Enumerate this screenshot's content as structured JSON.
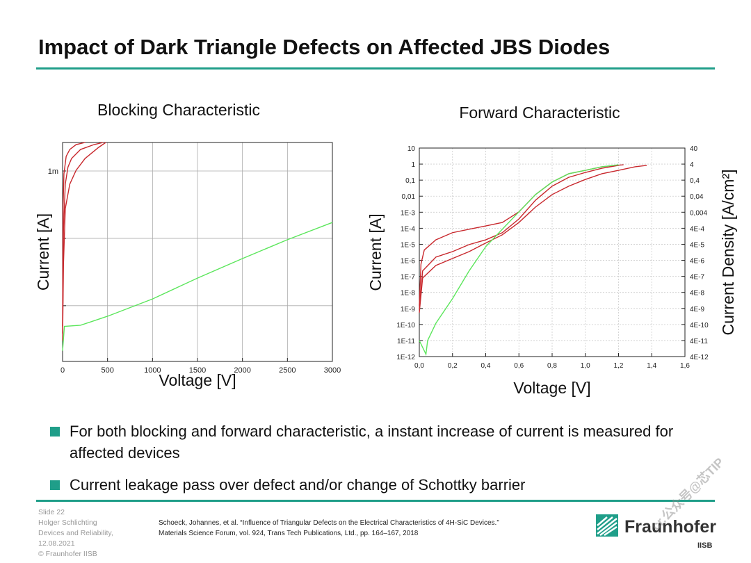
{
  "title": "Impact of Dark Triangle Defects on Affected JBS Diodes",
  "chart_data": [
    {
      "type": "line",
      "title": "Blocking Characteristic",
      "xlabel": "Voltage [V]",
      "ylabel": "Current [A]",
      "yscale": "log",
      "grid": true,
      "xlim": [
        0,
        3000
      ],
      "xticks": [
        0,
        500,
        1000,
        1500,
        2000,
        2500,
        3000
      ],
      "ylim": [
        3.3e-12,
        0.0186
      ],
      "yticks": [
        {
          "value": 0.001,
          "label": "1m"
        },
        {
          "value": 1e-06,
          "label": null
        },
        {
          "value": 1e-09,
          "label": null
        }
      ],
      "series": [
        {
          "color": "#c8282d",
          "x": [
            0,
            10,
            30,
            60,
            100,
            200,
            350,
            450
          ],
          "values": [
            5.8e-11,
            2.5e-06,
            0.00026,
            0.0015,
            0.0036,
            0.0091,
            0.015,
            0.0186
          ]
        },
        {
          "color": "#c8282d",
          "x": [
            0,
            5,
            15,
            40,
            80,
            150,
            250
          ],
          "values": [
            1.2e-10,
            2.1e-05,
            0.00075,
            0.0045,
            0.0091,
            0.015,
            0.0186
          ]
        },
        {
          "color": "#c8282d",
          "x": [
            0,
            10,
            30,
            80,
            150,
            250,
            400,
            480
          ],
          "values": [
            2.8e-11,
            7.2e-08,
            2.1e-05,
            0.00026,
            0.00107,
            0.0036,
            0.0112,
            0.0186
          ]
        },
        {
          "color": "#5ce65c",
          "x": [
            0,
            20,
            200,
            500,
            1000,
            1500,
            2000,
            2500,
            3000
          ],
          "values": [
            9.8e-12,
            1.2e-10,
            1.35e-10,
            3.4e-10,
            2e-09,
            1.7e-08,
            1.26e-07,
            8.7e-07,
            5.1e-06
          ]
        }
      ]
    },
    {
      "type": "line",
      "title": "Forward Characteristic",
      "xlabel": "Voltage [V]",
      "ylabel": "Current [A]",
      "y2label": "Current Density [A/cm²]",
      "yscale": "log",
      "grid": true,
      "xlim": [
        0,
        1.6
      ],
      "xticks": [
        {
          "value": 0,
          "label": "0,0"
        },
        {
          "value": 0.2,
          "label": "0,2"
        },
        {
          "value": 0.4,
          "label": "0,4"
        },
        {
          "value": 0.6,
          "label": "0,6"
        },
        {
          "value": 0.8,
          "label": "0,8"
        },
        {
          "value": 1.0,
          "label": "1,0"
        },
        {
          "value": 1.2,
          "label": "1,2"
        },
        {
          "value": 1.4,
          "label": "1,4"
        },
        {
          "value": 1.6,
          "label": "1,6"
        }
      ],
      "ylim": [
        1e-12,
        10
      ],
      "yticks": [
        10,
        1,
        {
          "value": 0.1,
          "label": "0,1"
        },
        {
          "value": 0.01,
          "label": "0,01"
        },
        {
          "value": 0.001,
          "label": "1E-3"
        },
        {
          "value": 0.0001,
          "label": "1E-4"
        },
        {
          "value": 1e-05,
          "label": "1E-5"
        },
        {
          "value": 1e-06,
          "label": "1E-6"
        },
        {
          "value": 1e-07,
          "label": "1E-7"
        },
        {
          "value": 1e-08,
          "label": "1E-8"
        },
        {
          "value": 1e-09,
          "label": "1E-9"
        },
        {
          "value": 1e-10,
          "label": "1E-10"
        },
        {
          "value": 1e-11,
          "label": "1E-11"
        },
        {
          "value": 1e-12,
          "label": "1E-12"
        }
      ],
      "y2lim": [
        4e-12,
        40
      ],
      "y2ticks": [
        40,
        4,
        {
          "value": 0.4,
          "label": "0,4"
        },
        {
          "value": 0.04,
          "label": "0,04"
        },
        {
          "value": 0.004,
          "label": "0,004"
        },
        {
          "value": 0.0004,
          "label": "4E-4"
        },
        {
          "value": 4e-05,
          "label": "4E-5"
        },
        {
          "value": 4e-06,
          "label": "4E-6"
        },
        {
          "value": 4e-07,
          "label": "4E-7"
        },
        {
          "value": 4e-08,
          "label": "4E-8"
        },
        {
          "value": 4e-09,
          "label": "4E-9"
        },
        {
          "value": 4e-10,
          "label": "4E-10"
        },
        {
          "value": 4e-11,
          "label": "4E-11"
        },
        {
          "value": 4e-12,
          "label": "4E-12"
        }
      ],
      "series": [
        {
          "color": "#c8282d",
          "x": [
            0,
            0.01,
            0.03,
            0.1,
            0.2,
            0.3,
            0.4,
            0.5,
            0.6,
            0.7,
            0.8,
            0.9,
            1.0,
            1.1,
            1.2,
            1.23
          ],
          "values": [
            1.5e-09,
            5.9e-07,
            4.4e-06,
            1.9e-05,
            5.3e-05,
            8.7e-05,
            0.00014,
            0.00023,
            0.00105,
            0.0126,
            0.076,
            0.25,
            0.41,
            0.68,
            0.85,
            0.91
          ]
        },
        {
          "color": "#c8282d",
          "x": [
            0,
            0.02,
            0.1,
            0.2,
            0.3,
            0.4,
            0.5,
            0.6,
            0.7,
            0.8,
            0.9,
            1.0,
            1.1,
            1.2
          ],
          "values": [
            9e-10,
            2.2e-07,
            1.6e-06,
            3.5e-06,
            9.6e-06,
            1.9e-05,
            5.3e-05,
            0.00038,
            0.0056,
            0.042,
            0.15,
            0.3,
            0.55,
            0.83
          ]
        },
        {
          "color": "#c8282d",
          "x": [
            0,
            0.02,
            0.1,
            0.2,
            0.3,
            0.4,
            0.5,
            0.6,
            0.7,
            0.8,
            0.9,
            1.0,
            1.1,
            1.2,
            1.3,
            1.37
          ],
          "values": [
            5.5e-10,
            7.9e-08,
            4.8e-07,
            1.3e-06,
            3.5e-06,
            1.2e-05,
            3.9e-05,
            0.00023,
            0.0021,
            0.0126,
            0.042,
            0.11,
            0.25,
            0.41,
            0.68,
            0.83
          ]
        },
        {
          "color": "#5ce65c",
          "x": [
            0,
            0.04,
            0.05,
            0.1,
            0.2,
            0.3,
            0.4,
            0.5,
            0.6,
            0.7,
            0.8,
            0.9,
            1.0,
            1.1,
            1.2
          ],
          "values": [
            1e-11,
            1.4e-12,
            1e-11,
            1.2e-10,
            4.1e-09,
            2.2e-07,
            7.1e-06,
            8.7e-05,
            0.00105,
            0.0126,
            0.076,
            0.25,
            0.41,
            0.68,
            0.91
          ]
        }
      ]
    }
  ],
  "bullets": [
    "For both blocking and forward characteristic, a instant increase of current is measured for affected devices",
    "Current leakage pass over defect and/or change of Schottky barrier"
  ],
  "footer": {
    "slide": "Slide 22",
    "author": "Holger Schlichting",
    "dept": "Devices and Reliability,",
    "date": "12.08.2021",
    "copyright": "© Fraunhofer IISB",
    "reference": [
      "Schoeck, Johannes, et al. “Influence of Triangular Defects on the Electrical Characteristics of 4H-SiC Devices.”",
      "Materials Science Forum, vol. 924, Trans Tech Publications, Ltd., pp. 164–167, 2018"
    ],
    "logo": "Fraunhofer",
    "logo_sub": "IISB"
  },
  "watermark": "cr.公众号@芯TIP"
}
